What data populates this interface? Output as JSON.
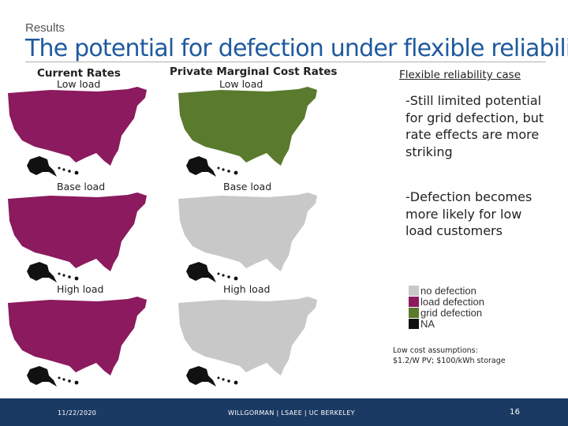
{
  "header": {
    "kicker": "Results",
    "title": "The potential for defection under flexible reliability"
  },
  "columns": {
    "current": "Current Rates",
    "private": "Private Marginal Cost Rates"
  },
  "maps": {
    "current_low": {
      "label": "Low load",
      "fill": "load defection"
    },
    "current_base": {
      "label": "Base load",
      "fill": "load defection"
    },
    "current_high": {
      "label": "High load",
      "fill": "load defection"
    },
    "private_low": {
      "label": "Low load",
      "fill": "grid defection"
    },
    "private_base": {
      "label": "Base load",
      "fill": "no defection"
    },
    "private_high": {
      "label": "High load",
      "fill": "no defection"
    }
  },
  "right": {
    "heading": "Flexible reliability case",
    "point1": "-Still limited potential for grid defection, but rate effects are more striking",
    "point2": "-Defection becomes more likely for low load customers"
  },
  "legend": [
    {
      "label": "no defection",
      "color": "#c8c8c8"
    },
    {
      "label": "load defection",
      "color": "#8b1a5e"
    },
    {
      "label": "grid defection",
      "color": "#5a7a2e"
    },
    {
      "label": "NA",
      "color": "#111111"
    }
  ],
  "assumptions": {
    "line1": "Low cost assumptions:",
    "line2": "$1.2/W PV; $100/kWh storage"
  },
  "footer": {
    "date": "11/22/2020",
    "org": "WILLGORMAN | LSAEE | UC BERKELEY",
    "page": "16"
  },
  "colors": {
    "title": "#1f5a9e",
    "no_defection": "#c8c8c8",
    "load_defection": "#8b1a5e",
    "grid_defection": "#5a7a2e",
    "na": "#111111",
    "footer": "#1b3a63"
  }
}
